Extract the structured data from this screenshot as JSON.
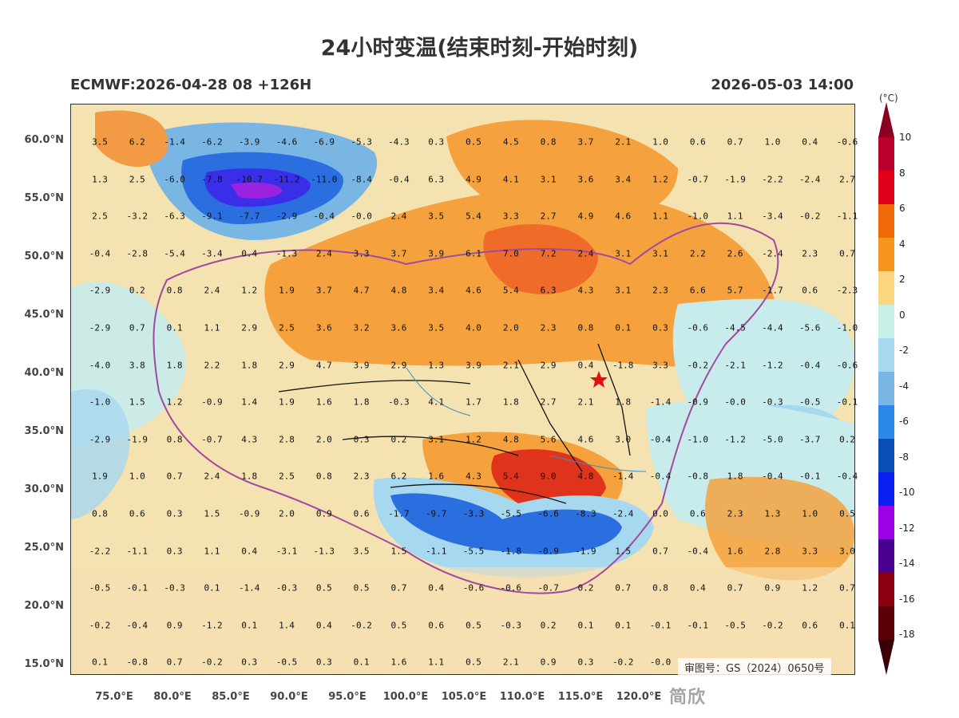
{
  "header": {
    "title": "24小时变温(结束时刻-开始时刻)",
    "model_run": "ECMWF:2026-04-28 08 +126H",
    "valid_time": "2026-05-03 14:00"
  },
  "axes": {
    "lat_labels": [
      "60.0°N",
      "55.0°N",
      "50.0°N",
      "45.0°N",
      "40.0°N",
      "35.0°N",
      "30.0°N",
      "25.0°N",
      "20.0°N",
      "15.0°N"
    ],
    "lon_labels": [
      "75.0°E",
      "80.0°E",
      "85.0°E",
      "90.0°E",
      "95.0°E",
      "100.0°E",
      "105.0°E",
      "110.0°E",
      "115.0°E",
      "120.0°E"
    ]
  },
  "colorbar": {
    "unit": "(°C)",
    "labels": [
      "10",
      "8",
      "6",
      "4",
      "2",
      "0",
      "-2",
      "-4",
      "-6",
      "-8",
      "-10",
      "-12",
      "-14",
      "-16",
      "-18"
    ],
    "colors": [
      "#b8002a",
      "#e0001c",
      "#f06a0a",
      "#f7941d",
      "#fcd581",
      "#c8f0e6",
      "#a6d8f0",
      "#7ab6e4",
      "#2a88ea",
      "#0a4db8",
      "#0a20f0",
      "#9e00e6",
      "#4a0090",
      "#8a0010",
      "#5a0008"
    ]
  },
  "approval": "审图号：GS（2024）0650号",
  "watermark": "简欣",
  "grid_values": [
    [
      "3.5",
      "6.2",
      "-1.4",
      "-6.2",
      "-3.9",
      "-4.6",
      "-6.9",
      "-5.3",
      "-4.3",
      "0.3",
      "0.5",
      "4.5",
      "0.8",
      "3.7",
      "2.1",
      "1.0",
      "0.6",
      "0.7",
      "1.0",
      "0.4",
      "-0.6"
    ],
    [
      "1.3",
      "2.5",
      "-6.0",
      "-7.8",
      "-10.7",
      "-11.2",
      "-11.0",
      "-8.4",
      "-0.4",
      "6.3",
      "4.9",
      "4.1",
      "3.1",
      "3.6",
      "3.4",
      "1.2",
      "-0.7",
      "-1.9",
      "-2.2",
      "-2.4",
      "2.7"
    ],
    [
      "2.5",
      "-3.2",
      "-6.3",
      "-9.1",
      "-7.7",
      "-2.9",
      "-0.4",
      "-0.0",
      "2.4",
      "3.5",
      "5.4",
      "3.3",
      "2.7",
      "4.9",
      "4.6",
      "1.1",
      "-1.0",
      "1.1",
      "-3.4",
      "-0.2",
      "-1.1"
    ],
    [
      "-0.4",
      "-2.8",
      "-5.4",
      "-3.4",
      "0.4",
      "-1.3",
      "2.4",
      "3.3",
      "3.7",
      "3.9",
      "6.1",
      "7.0",
      "7.2",
      "2.4",
      "3.1",
      "3.1",
      "2.2",
      "2.6",
      "-2.4",
      "2.3",
      "0.7"
    ],
    [
      "-2.9",
      "0.2",
      "0.8",
      "2.4",
      "1.2",
      "1.9",
      "3.7",
      "4.7",
      "4.8",
      "3.4",
      "4.6",
      "5.4",
      "6.3",
      "4.3",
      "3.1",
      "2.3",
      "6.6",
      "5.7",
      "-1.7",
      "0.6",
      "-2.3"
    ],
    [
      "-2.9",
      "0.7",
      "0.1",
      "1.1",
      "2.9",
      "2.5",
      "3.6",
      "3.2",
      "3.6",
      "3.5",
      "4.0",
      "2.0",
      "2.3",
      "0.8",
      "0.1",
      "0.3",
      "-0.6",
      "-4.5",
      "-4.4",
      "-5.6",
      "-1.0"
    ],
    [
      "-4.0",
      "3.8",
      "1.8",
      "2.2",
      "1.8",
      "2.9",
      "4.7",
      "3.9",
      "2.9",
      "1.3",
      "3.9",
      "2.1",
      "2.9",
      "0.4",
      "-1.8",
      "3.3",
      "-0.2",
      "-2.1",
      "-1.2",
      "-0.4",
      "-0.6"
    ],
    [
      "-1.0",
      "1.5",
      "1.2",
      "-0.9",
      "1.4",
      "1.9",
      "1.6",
      "1.8",
      "-0.3",
      "4.1",
      "1.7",
      "1.8",
      "2.7",
      "2.1",
      "1.8",
      "-1.4",
      "-0.9",
      "-0.0",
      "-0.3",
      "-0.5",
      "-0.1"
    ],
    [
      "-2.9",
      "-1.9",
      "0.8",
      "-0.7",
      "4.3",
      "2.8",
      "2.0",
      "0.3",
      "0.2",
      "3.1",
      "1.2",
      "4.8",
      "5.6",
      "4.6",
      "3.0",
      "-0.4",
      "-1.0",
      "-1.2",
      "-5.0",
      "-3.7",
      "0.2"
    ],
    [
      "1.9",
      "1.0",
      "0.7",
      "2.4",
      "1.8",
      "2.5",
      "0.8",
      "2.3",
      "6.2",
      "1.6",
      "4.3",
      "5.4",
      "9.0",
      "4.8",
      "-1.4",
      "-0.4",
      "-0.8",
      "1.8",
      "-0.4",
      "-0.1",
      "-0.4"
    ],
    [
      "0.8",
      "0.6",
      "0.3",
      "1.5",
      "-0.9",
      "2.0",
      "0.9",
      "0.6",
      "-1.7",
      "-9.7",
      "-3.3",
      "-5.5",
      "-6.6",
      "-8.3",
      "-2.4",
      "0.0",
      "0.6",
      "2.3",
      "1.3",
      "1.0",
      "0.5"
    ],
    [
      "-2.2",
      "-1.1",
      "0.3",
      "1.1",
      "0.4",
      "-3.1",
      "-1.3",
      "3.5",
      "1.5",
      "-1.1",
      "-5.5",
      "-1.8",
      "-0.9",
      "-1.9",
      "1.5",
      "0.7",
      "-0.4",
      "1.6",
      "2.8",
      "3.3",
      "3.0"
    ],
    [
      "-0.5",
      "-0.1",
      "-0.3",
      "0.1",
      "-1.4",
      "-0.3",
      "0.5",
      "0.5",
      "0.7",
      "0.4",
      "-0.6",
      "-0.6",
      "-0.7",
      "0.2",
      "0.7",
      "0.8",
      "0.4",
      "0.7",
      "0.9",
      "1.2",
      "0.7"
    ],
    [
      "-0.2",
      "-0.4",
      "0.9",
      "-1.2",
      "0.1",
      "1.4",
      "0.4",
      "-0.2",
      "0.5",
      "0.6",
      "0.5",
      "-0.3",
      "0.2",
      "0.1",
      "0.1",
      "-0.1",
      "-0.1",
      "-0.5",
      "-0.2",
      "0.6",
      "0.1"
    ],
    [
      "0.1",
      "-0.8",
      "0.7",
      "-0.2",
      "0.3",
      "-0.5",
      "0.3",
      "0.1",
      "1.6",
      "1.1",
      "0.5",
      "2.1",
      "0.9",
      "0.3",
      "-0.2",
      "-0.0",
      "",
      "",
      "",
      "",
      ""
    ]
  ]
}
